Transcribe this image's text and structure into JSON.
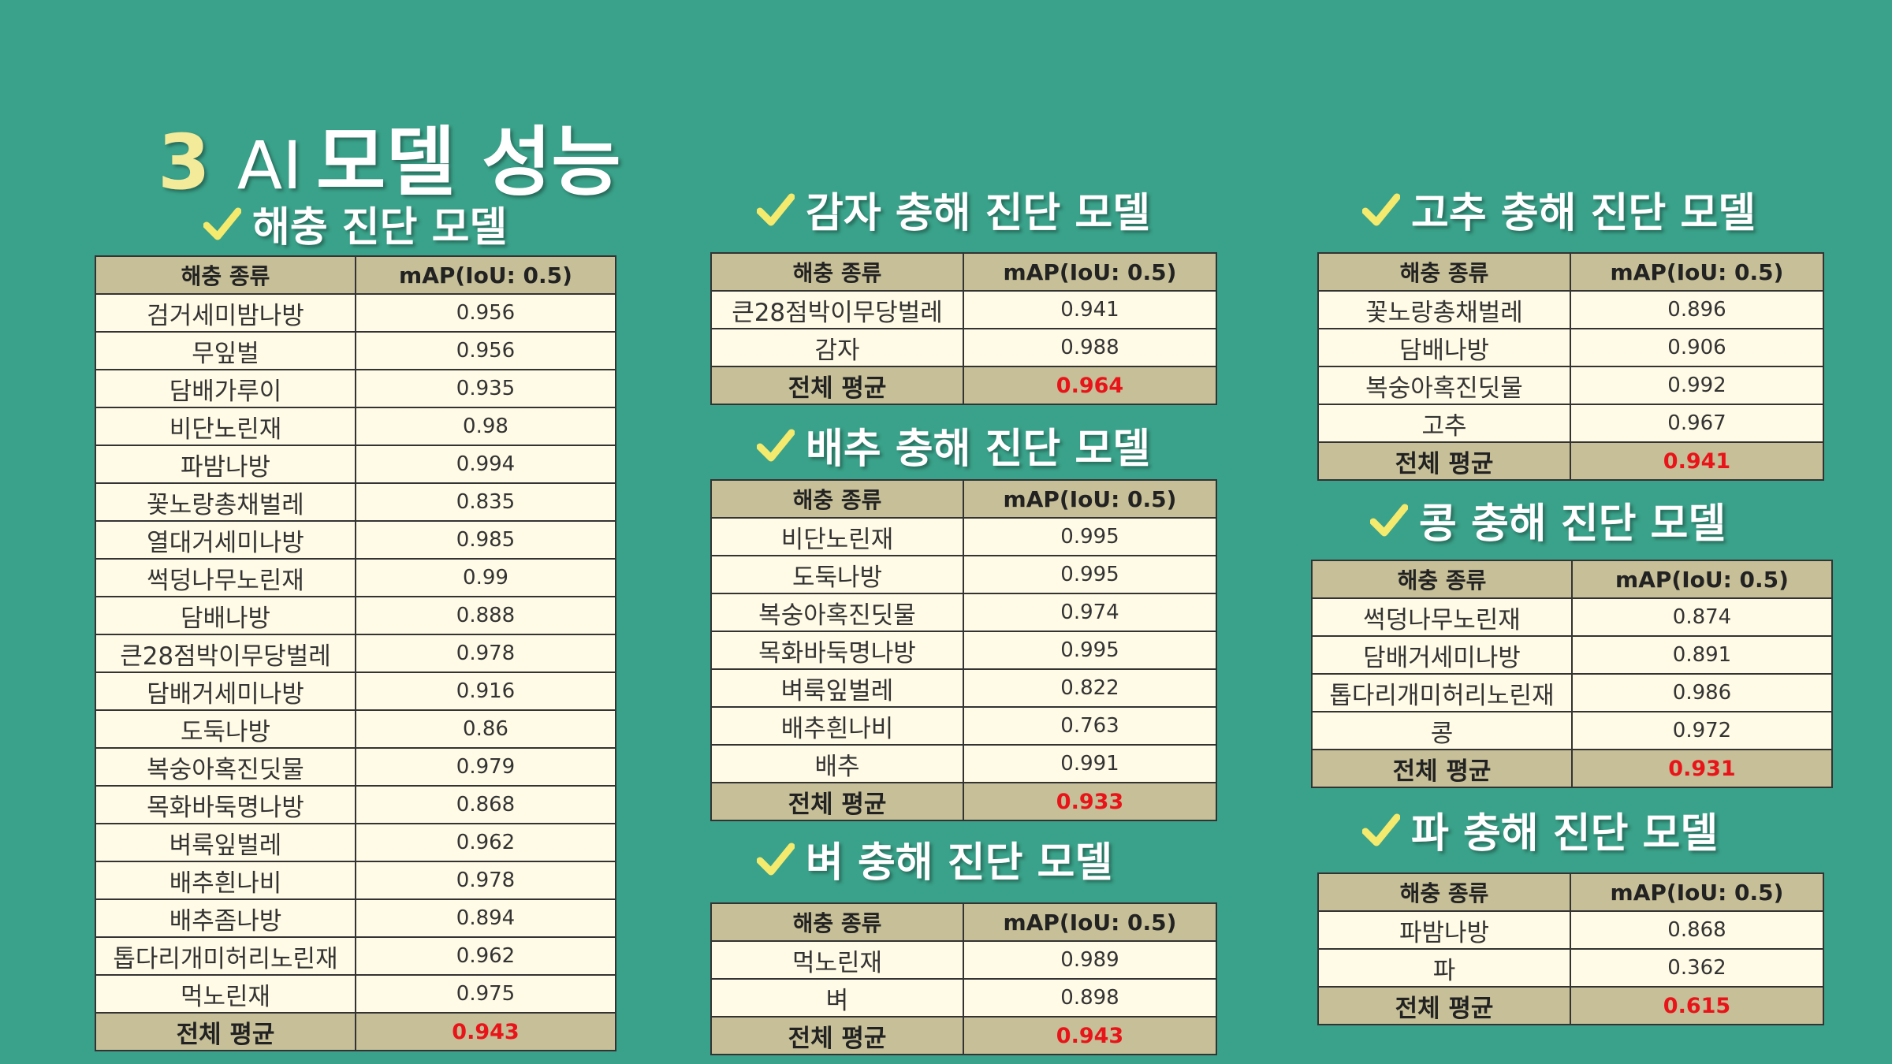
{
  "title": {
    "number": "3",
    "ai": "AI",
    "text": "모델 성능"
  },
  "col_species": "해충 종류",
  "col_map": "mAP(IoU: 0.5)",
  "avg_label": "전체 평균",
  "colors": {
    "background": "#3aa28a",
    "header": "#c6bf97",
    "row": "#fffbe6",
    "avg_value": "#e8141a",
    "check": "#f3ea6e"
  },
  "sections": {
    "pest": {
      "title": "해충 진단 모델",
      "rows": [
        {
          "name": "검거세미밤나방",
          "value": "0.956"
        },
        {
          "name": "무잎벌",
          "value": "0.956"
        },
        {
          "name": "담배가루이",
          "value": "0.935"
        },
        {
          "name": "비단노린재",
          "value": "0.98"
        },
        {
          "name": "파밤나방",
          "value": "0.994"
        },
        {
          "name": "꽃노랑총채벌레",
          "value": "0.835"
        },
        {
          "name": "열대거세미나방",
          "value": "0.985"
        },
        {
          "name": "썩덩나무노린재",
          "value": "0.99"
        },
        {
          "name": "담배나방",
          "value": "0.888"
        },
        {
          "name": "큰28점박이무당벌레",
          "value": "0.978"
        },
        {
          "name": "담배거세미나방",
          "value": "0.916"
        },
        {
          "name": "도둑나방",
          "value": "0.86"
        },
        {
          "name": "복숭아혹진딧물",
          "value": "0.979"
        },
        {
          "name": "목화바둑명나방",
          "value": "0.868"
        },
        {
          "name": "벼룩잎벌레",
          "value": "0.962"
        },
        {
          "name": "배추흰나비",
          "value": "0.978"
        },
        {
          "name": "배추좀나방",
          "value": "0.894"
        },
        {
          "name": "톱다리개미허리노린재",
          "value": "0.962"
        },
        {
          "name": "먹노린재",
          "value": "0.975"
        }
      ],
      "average": "0.943"
    },
    "potato": {
      "title": "감자 충해 진단 모델",
      "rows": [
        {
          "name": "큰28점박이무당벌레",
          "value": "0.941"
        },
        {
          "name": "감자",
          "value": "0.988"
        }
      ],
      "average": "0.964"
    },
    "cabbage": {
      "title": "배추 충해 진단 모델",
      "rows": [
        {
          "name": "비단노린재",
          "value": "0.995"
        },
        {
          "name": "도둑나방",
          "value": "0.995"
        },
        {
          "name": "복숭아혹진딧물",
          "value": "0.974"
        },
        {
          "name": "목화바둑명나방",
          "value": "0.995"
        },
        {
          "name": "벼룩잎벌레",
          "value": "0.822"
        },
        {
          "name": "배추흰나비",
          "value": "0.763"
        },
        {
          "name": "배추",
          "value": "0.991"
        }
      ],
      "average": "0.933"
    },
    "rice": {
      "title": "벼 충해 진단 모델",
      "rows": [
        {
          "name": "먹노린재",
          "value": "0.989"
        },
        {
          "name": "벼",
          "value": "0.898"
        }
      ],
      "average": "0.943"
    },
    "pepper": {
      "title": "고추 충해 진단 모델",
      "rows": [
        {
          "name": "꽃노랑총채벌레",
          "value": "0.896"
        },
        {
          "name": "담배나방",
          "value": "0.906"
        },
        {
          "name": "복숭아혹진딧물",
          "value": "0.992"
        },
        {
          "name": "고추",
          "value": "0.967"
        }
      ],
      "average": "0.941"
    },
    "bean": {
      "title": "콩 충해 진단 모델",
      "rows": [
        {
          "name": "썩덩나무노린재",
          "value": "0.874"
        },
        {
          "name": "담배거세미나방",
          "value": "0.891"
        },
        {
          "name": "톱다리개미허리노린재",
          "value": "0.986"
        },
        {
          "name": "콩",
          "value": "0.972"
        }
      ],
      "average": "0.931"
    },
    "greenonion": {
      "title": "파 충해 진단 모델",
      "rows": [
        {
          "name": "파밤나방",
          "value": "0.868"
        },
        {
          "name": "파",
          "value": "0.362"
        }
      ],
      "average": "0.615"
    }
  }
}
